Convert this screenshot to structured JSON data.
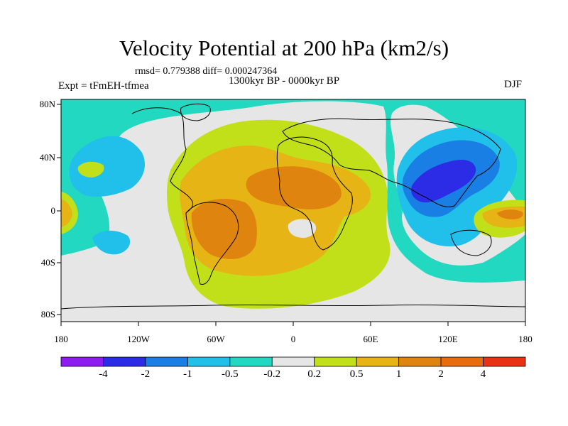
{
  "title": "Velocity Potential at 200 hPa (km2/s)",
  "stats": "rmsd= 0.779388 diff= 0.000247364",
  "period": "1300kyr BP - 0000kyr BP",
  "experiment": "Expt = tFmEH-tfmea",
  "season": "DJF",
  "axes": {
    "y_ticks": [
      "80N",
      "40N",
      "0",
      "40S",
      "80S"
    ],
    "x_ticks": [
      "180",
      "120W",
      "60W",
      "0",
      "60E",
      "120E",
      "180"
    ]
  },
  "colorbar": {
    "labels": [
      "-4",
      "-2",
      "-1",
      "-0.5",
      "-0.2",
      "0.2",
      "0.5",
      "1",
      "2",
      "4"
    ],
    "colors": [
      "#8c1cf0",
      "#2c2ce6",
      "#1a7fe4",
      "#20c0ea",
      "#22d8c0",
      "#e6e6e6",
      "#c2e01a",
      "#e6b414",
      "#e08410",
      "#e86c0c",
      "#e83214"
    ]
  }
}
